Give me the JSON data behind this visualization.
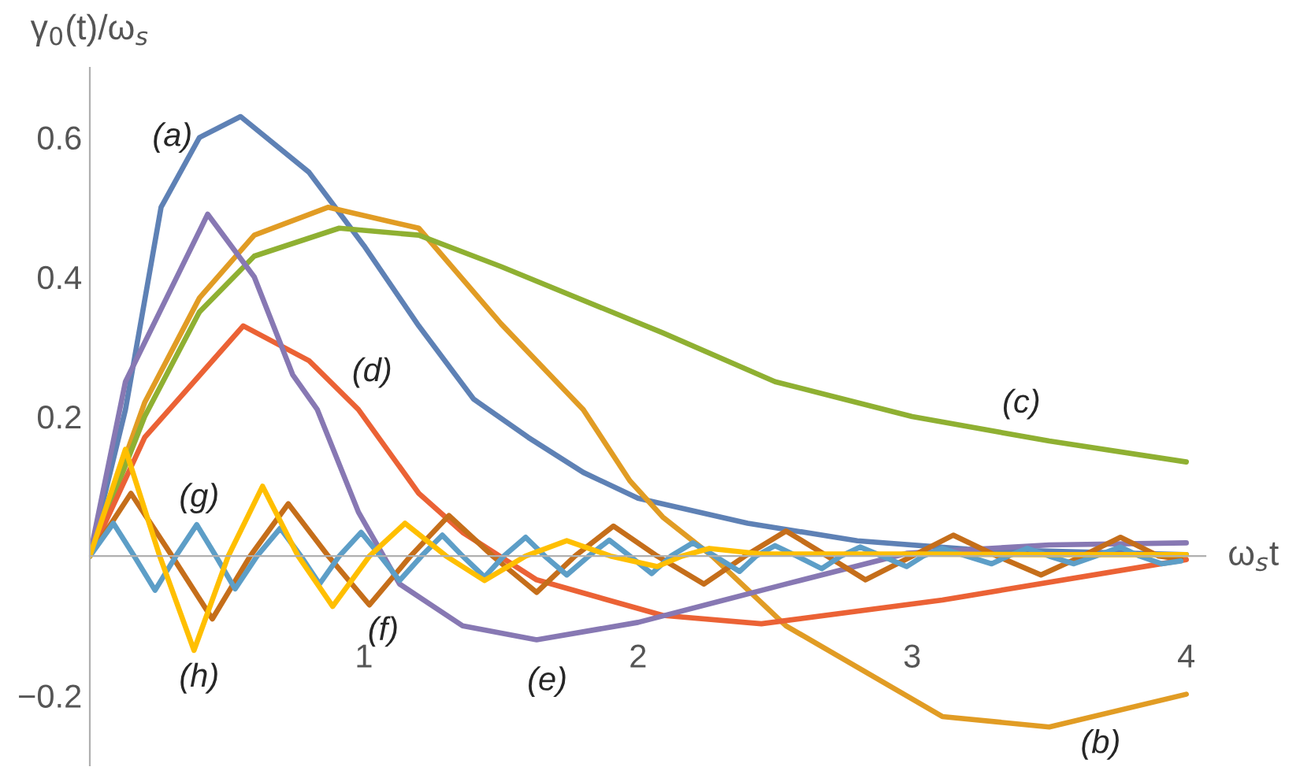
{
  "chart_data": {
    "type": "line",
    "xlabel": "ω$_{s}$t",
    "ylabel": "γ$_{0}$(t)/ω$_{s}$",
    "xlim": [
      0,
      4.07
    ],
    "ylim": [
      -0.3,
      0.7
    ],
    "xticks": [
      1,
      2,
      3,
      4
    ],
    "yticks": [
      {
        "value": -0.2,
        "label": "−0.2"
      },
      0.2,
      0.4,
      0.6
    ],
    "grid": false,
    "legend": false,
    "marker": "none",
    "line_style": "solid",
    "series": [
      {
        "name": "(a)",
        "color": "#5e81b5",
        "x": [
          0,
          0.13,
          0.26,
          0.4,
          0.55,
          0.8,
          1.0,
          1.2,
          1.4,
          1.6,
          1.8,
          2.0,
          2.4,
          2.8,
          3.2,
          4.0
        ],
        "values": [
          0,
          0.21,
          0.5,
          0.6,
          0.63,
          0.55,
          0.445,
          0.33,
          0.225,
          0.17,
          0.12,
          0.083,
          0.047,
          0.022,
          0.01,
          0.002
        ]
      },
      {
        "name": "(b)",
        "color": "#e19c24",
        "x": [
          0,
          0.2,
          0.4,
          0.6,
          0.87,
          1.2,
          1.5,
          1.8,
          1.97,
          2.09,
          2.27,
          2.54,
          3.11,
          3.5,
          4.0
        ],
        "values": [
          0,
          0.22,
          0.37,
          0.46,
          0.5,
          0.47,
          0.333,
          0.21,
          0.108,
          0.056,
          0,
          -0.1,
          -0.23,
          -0.245,
          -0.198
        ]
      },
      {
        "name": "(c)",
        "color": "#8fb032",
        "x": [
          0,
          0.2,
          0.4,
          0.6,
          0.91,
          1.2,
          1.5,
          2.09,
          2.5,
          3.0,
          3.5,
          4.0
        ],
        "values": [
          0,
          0.2,
          0.35,
          0.43,
          0.47,
          0.46,
          0.415,
          0.32,
          0.25,
          0.2,
          0.165,
          0.135
        ]
      },
      {
        "name": "(d)",
        "color": "#eb6235",
        "x": [
          0,
          0.2,
          0.56,
          0.8,
          0.98,
          1.2,
          1.36,
          1.63,
          2.09,
          2.45,
          3.11,
          4.0
        ],
        "values": [
          0,
          0.17,
          0.33,
          0.28,
          0.21,
          0.09,
          0.034,
          -0.034,
          -0.085,
          -0.097,
          -0.063,
          -0.005
        ]
      },
      {
        "name": "(e)",
        "color": "#8778b3",
        "x": [
          0,
          0.13,
          0.43,
          0.6,
          0.74,
          0.83,
          0.98,
          1.13,
          1.36,
          1.63,
          2.0,
          2.54,
          2.98,
          3.5,
          4.0
        ],
        "values": [
          0,
          0.25,
          0.49,
          0.4,
          0.26,
          0.21,
          0.063,
          -0.04,
          -0.1,
          -0.12,
          -0.095,
          -0.04,
          0.004,
          0.016,
          0.019
        ]
      },
      {
        "name": "(f)",
        "color": "#c56e1a",
        "x": [
          0,
          0.15,
          0.3,
          0.447,
          0.585,
          0.724,
          0.87,
          1.02,
          1.17,
          1.31,
          1.47,
          1.63,
          1.77,
          1.91,
          2.07,
          2.24,
          2.39,
          2.54,
          2.69,
          2.83,
          3.0,
          3.15,
          3.31,
          3.47,
          3.62,
          3.76,
          3.9,
          3.98
        ],
        "values": [
          0,
          0.09,
          0,
          -0.09,
          0,
          0.075,
          0,
          -0.07,
          0,
          0.058,
          0,
          -0.052,
          0,
          0.043,
          0,
          -0.04,
          0,
          0.036,
          0,
          -0.034,
          0,
          0.03,
          0,
          -0.027,
          0,
          0.027,
          0,
          -0.004
        ]
      },
      {
        "name": "(g)",
        "color": "#5d9ec7",
        "x": [
          0,
          0.086,
          0.162,
          0.238,
          0.314,
          0.39,
          0.46,
          0.53,
          0.61,
          0.695,
          0.77,
          0.838,
          0.91,
          0.99,
          1.06,
          1.13,
          1.21,
          1.286,
          1.36,
          1.44,
          1.51,
          1.59,
          1.66,
          1.74,
          1.82,
          1.895,
          1.97,
          2.05,
          2.12,
          2.2,
          2.28,
          2.37,
          2.43,
          2.5,
          2.58,
          2.67,
          2.74,
          2.81,
          2.89,
          2.98,
          3.04,
          3.11,
          3.2,
          3.29,
          3.35,
          3.42,
          3.5,
          3.59,
          3.67,
          3.76,
          3.83,
          3.91,
          3.98
        ],
        "values": [
          0,
          0.047,
          0,
          -0.049,
          0,
          0.045,
          0,
          -0.047,
          0,
          0.04,
          0,
          -0.04,
          0,
          0.034,
          0,
          -0.035,
          0,
          0.03,
          0,
          -0.03,
          0,
          0.027,
          0,
          -0.027,
          0,
          0.023,
          0,
          -0.025,
          0,
          0.019,
          0,
          -0.022,
          0,
          0.015,
          0,
          -0.018,
          0,
          0.013,
          0,
          -0.015,
          0,
          0.011,
          0,
          -0.011,
          0,
          0.011,
          0,
          -0.011,
          0,
          0.013,
          0,
          -0.011,
          -0.007
        ]
      },
      {
        "name": "(h)",
        "color": "#ffbf00",
        "x": [
          0,
          0.13,
          0.255,
          0.38,
          0.505,
          0.63,
          0.76,
          0.886,
          1.02,
          1.15,
          1.3,
          1.44,
          1.59,
          1.74,
          1.9,
          2.07,
          2.16,
          2.26,
          2.45,
          3.0,
          3.5,
          4.0
        ],
        "values": [
          0,
          0.153,
          0,
          -0.135,
          0,
          0.1,
          0,
          -0.072,
          0,
          0.047,
          0,
          -0.035,
          0,
          0.022,
          0,
          -0.015,
          0,
          0.011,
          0.003,
          0.003,
          0.002,
          0.002
        ]
      }
    ]
  }
}
